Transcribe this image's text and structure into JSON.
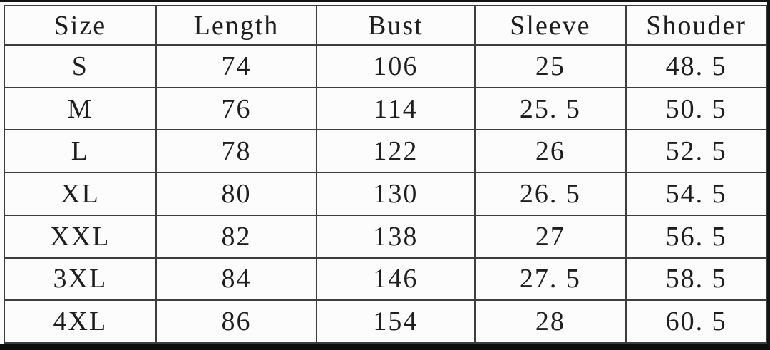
{
  "table": {
    "columns": [
      "Size",
      "Length",
      "Bust",
      "Sleeve",
      "Shouder"
    ],
    "rows": [
      {
        "cells": [
          "S",
          "74",
          "106",
          "25",
          "48. 5"
        ]
      },
      {
        "cells": [
          "M",
          "76",
          "114",
          "25. 5",
          "50. 5"
        ]
      },
      {
        "cells": [
          "L",
          "78",
          "122",
          "26",
          "52. 5"
        ]
      },
      {
        "cells": [
          "XL",
          "80",
          "130",
          "26. 5",
          "54. 5"
        ]
      },
      {
        "cells": [
          "XXL",
          "82",
          "138",
          "27",
          "56. 5"
        ]
      },
      {
        "cells": [
          "3XL",
          "84",
          "146",
          "27. 5",
          "58. 5"
        ]
      },
      {
        "cells": [
          "4XL",
          "86",
          "154",
          "28",
          "60. 5"
        ]
      }
    ]
  },
  "chart_data": {
    "type": "table",
    "columns": [
      "Size",
      "Length",
      "Bust",
      "Sleeve",
      "Shouder"
    ],
    "rows": [
      [
        "S",
        74,
        106,
        25,
        48.5
      ],
      [
        "M",
        76,
        114,
        25.5,
        50.5
      ],
      [
        "L",
        78,
        122,
        26,
        52.5
      ],
      [
        "XL",
        80,
        130,
        26.5,
        54.5
      ],
      [
        "XXL",
        82,
        138,
        27,
        56.5
      ],
      [
        "3XL",
        84,
        146,
        27.5,
        58.5
      ],
      [
        "4XL",
        86,
        154,
        28,
        60.5
      ]
    ]
  },
  "colors": {
    "grid": "#3d3d3d",
    "text": "#1e1e1e",
    "photo_edge": "#0d0d0d",
    "cell_background": "#fcfcfc"
  }
}
